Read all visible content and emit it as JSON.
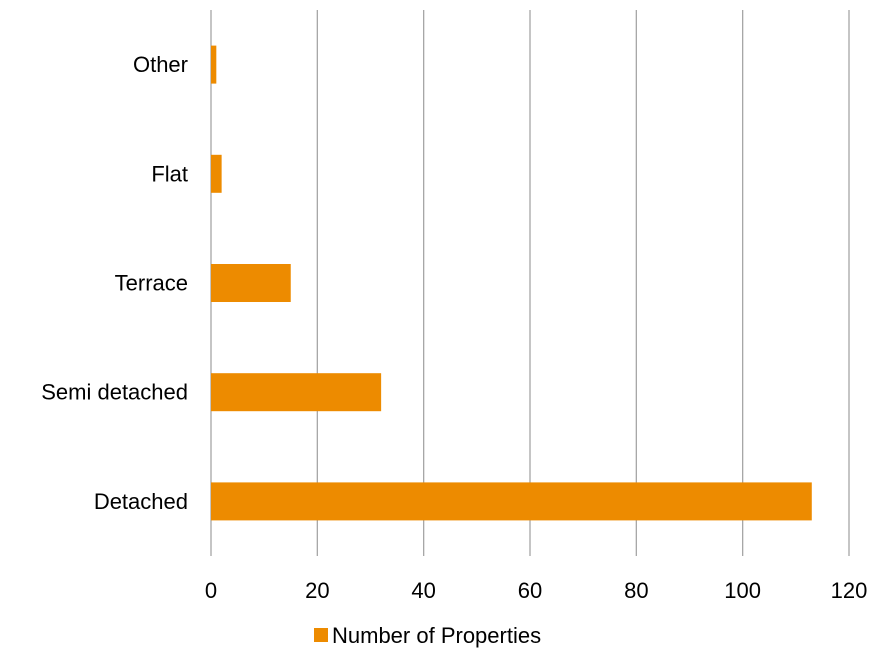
{
  "chart_data": {
    "type": "bar",
    "orientation": "horizontal",
    "categories": [
      "Detached",
      "Semi detached",
      "Terrace",
      "Flat",
      "Other"
    ],
    "series": [
      {
        "name": "Number of Properties",
        "values": [
          113,
          32,
          15,
          2,
          1
        ],
        "color": "#ED8B00"
      }
    ],
    "xlim": [
      0,
      120
    ],
    "xticks": [
      0,
      20,
      40,
      60,
      80,
      100,
      120
    ],
    "grid": "vertical",
    "legend_position": "bottom",
    "gridline_color": "#A6A6A6"
  }
}
